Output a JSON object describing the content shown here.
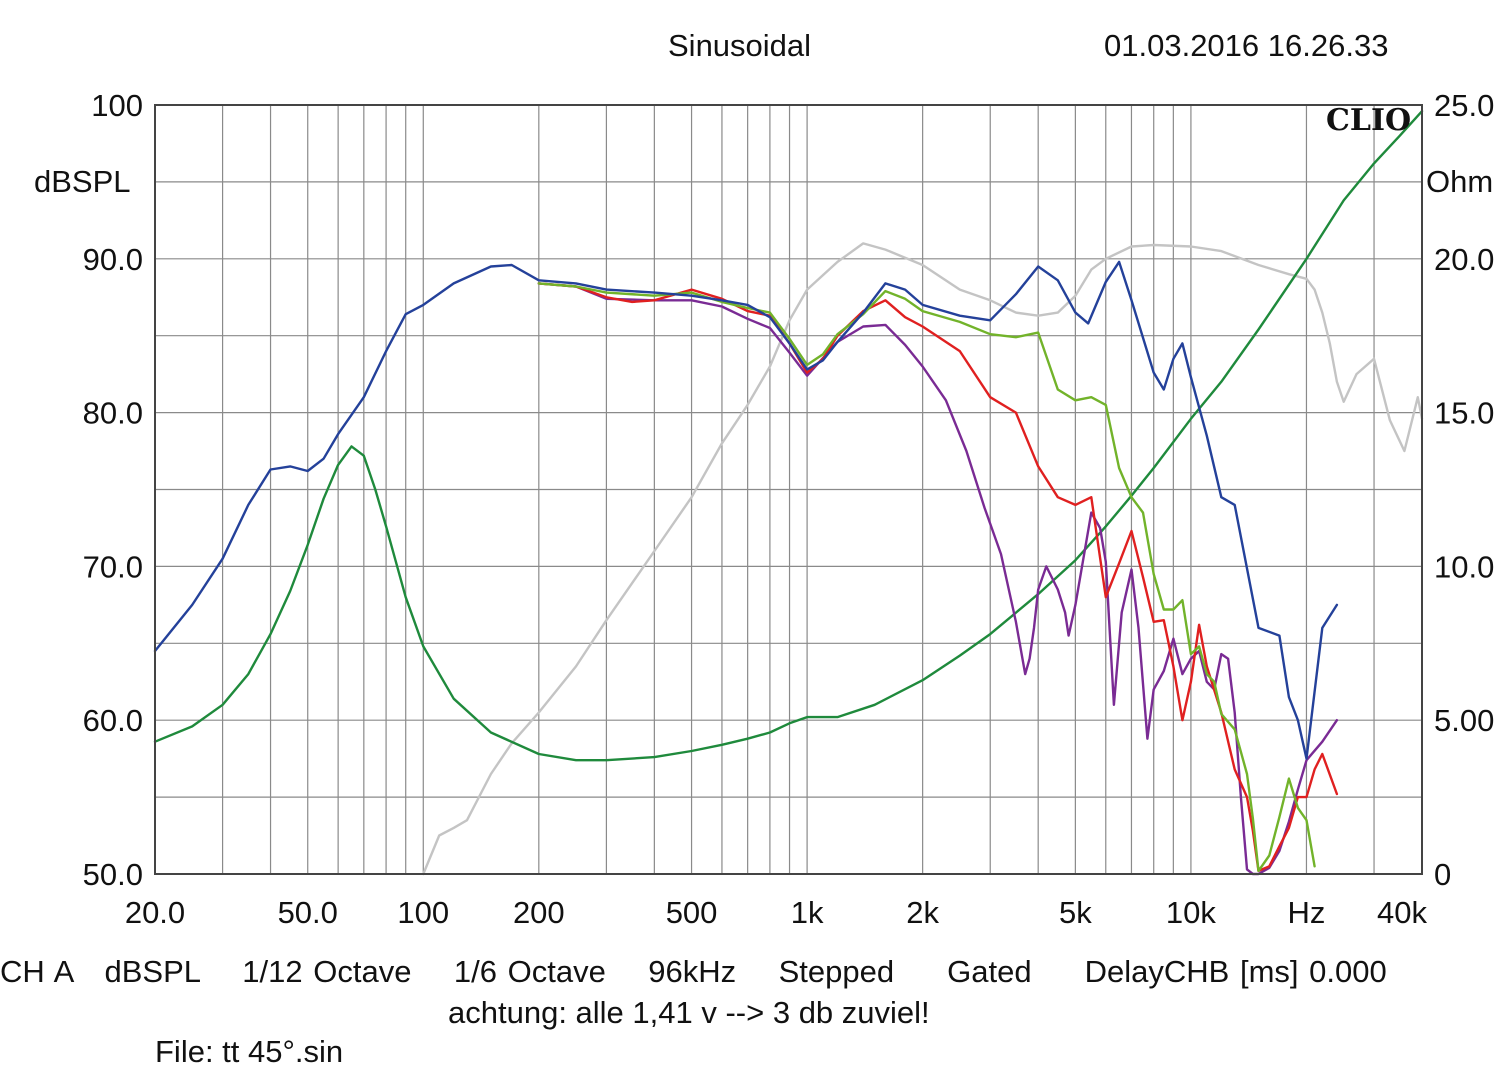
{
  "header": {
    "title": "Sinusoidal",
    "datetime": "01.03.2016 16.26.33",
    "brand": "CLIO"
  },
  "footer": {
    "settings": "CH A   dBSPL    1/12 Octave    1/6 Octave    96kHz    Stepped     Gated     DelayCHB [ms] 0.000",
    "note": "achtung: alle 1,41 v --> 3 db zuviel!",
    "file": "File: tt 45°.sin"
  },
  "chart_data": {
    "type": "line",
    "title": "Sinusoidal",
    "x_scale": "log",
    "xlim": [
      20,
      40000
    ],
    "ylim": [
      50,
      100
    ],
    "ylabel": "dBSPL",
    "y2lim": [
      0,
      25
    ],
    "y2label": "Ohm",
    "x_tick_labels": [
      "20.0",
      "50.0",
      "100",
      "200",
      "500",
      "1k",
      "2k",
      "5k",
      "10k",
      "Hz",
      "40k"
    ],
    "x_tick_values": [
      20,
      50,
      100,
      200,
      500,
      1000,
      2000,
      5000,
      10000,
      20000,
      40000
    ],
    "y_tick_labels": [
      "50.0",
      "60.0",
      "70.0",
      "80.0",
      "90.0",
      "100"
    ],
    "y_tick_values": [
      50,
      60,
      70,
      80,
      90,
      100
    ],
    "y2_tick_labels": [
      "0",
      "5.00",
      "10.0",
      "15.0",
      "20.0",
      "25.0"
    ],
    "y2_tick_values": [
      0,
      5,
      10,
      15,
      20,
      25
    ],
    "grid": true,
    "series": [
      {
        "color": "#24419a",
        "axis": "left",
        "x": [
          20,
          25,
          30,
          35,
          40,
          45,
          50,
          55,
          60,
          70,
          80,
          90,
          100,
          120,
          150,
          170,
          200,
          250,
          300,
          400,
          500,
          600,
          700,
          800,
          900,
          1000,
          1100,
          1200,
          1400,
          1600,
          1800,
          2000,
          2500,
          3000,
          3500,
          4000,
          4500,
          5000,
          5400,
          6000,
          6500,
          7000,
          8000,
          8500,
          9000,
          9500,
          10000,
          11000,
          12000,
          13000,
          15000,
          17000,
          18000,
          19000,
          20000,
          22000,
          24000
        ],
        "values": [
          64.5,
          67.5,
          70.5,
          74,
          76.3,
          76.5,
          76.2,
          77,
          78.6,
          81,
          84,
          86.4,
          87,
          88.4,
          89.5,
          89.6,
          88.6,
          88.4,
          88,
          87.8,
          87.6,
          87.3,
          87,
          86.2,
          84.5,
          82.8,
          83.4,
          84.6,
          86.5,
          88.4,
          88,
          87,
          86.3,
          86,
          87.7,
          89.5,
          88.6,
          86.5,
          85.8,
          88.5,
          89.8,
          87.3,
          82.6,
          81.5,
          83.5,
          84.5,
          82.3,
          78.5,
          74.5,
          74,
          66,
          65.5,
          61.5,
          60,
          57.5,
          66,
          67.5
        ]
      },
      {
        "color": "#e02020",
        "axis": "left",
        "x": [
          200,
          250,
          300,
          350,
          400,
          500,
          600,
          700,
          800,
          900,
          1000,
          1100,
          1200,
          1400,
          1600,
          1800,
          2000,
          2500,
          3000,
          3500,
          4000,
          4500,
          5000,
          5500,
          6000,
          6500,
          7000,
          7500,
          8000,
          8500,
          9000,
          9500,
          10000,
          10500,
          11000,
          12000,
          13000,
          14000,
          14500,
          15000,
          16000,
          17000,
          18000,
          19000,
          20000,
          21000,
          22000,
          24000
        ],
        "values": [
          88.4,
          88.2,
          87.5,
          87.2,
          87.3,
          88,
          87.4,
          86.6,
          86.3,
          84.5,
          82.6,
          83.5,
          85,
          86.6,
          87.3,
          86.2,
          85.6,
          84,
          81,
          80,
          76.5,
          74.5,
          74,
          74.5,
          68,
          70.2,
          72.3,
          69.3,
          66.4,
          66.5,
          63.5,
          60,
          62.5,
          66.2,
          63.5,
          60.5,
          56.8,
          55,
          52.8,
          50.2,
          50.5,
          51.8,
          53,
          55,
          55,
          56.8,
          57.8,
          55.2
        ]
      },
      {
        "color": "#72b32a",
        "axis": "left",
        "x": [
          200,
          250,
          300,
          400,
          500,
          600,
          700,
          800,
          900,
          1000,
          1100,
          1200,
          1400,
          1600,
          1800,
          2000,
          2500,
          3000,
          3500,
          4000,
          4500,
          5000,
          5500,
          6000,
          6500,
          7000,
          7500,
          8000,
          8500,
          9000,
          9500,
          10000,
          10500,
          11000,
          11500,
          12000,
          13000,
          14000,
          14500,
          15000,
          16000,
          17000,
          18000,
          19000,
          20000,
          21000
        ],
        "values": [
          88.4,
          88.2,
          87.8,
          87.6,
          87.8,
          87.2,
          86.8,
          86.5,
          84.8,
          83.1,
          83.8,
          85.1,
          86.4,
          87.9,
          87.4,
          86.6,
          85.9,
          85.1,
          84.9,
          85.2,
          81.5,
          80.8,
          81,
          80.5,
          76.4,
          74.5,
          73.5,
          69.5,
          67.2,
          67.2,
          67.8,
          64.3,
          64.8,
          63,
          62.5,
          60.4,
          59.4,
          56.5,
          53.6,
          50.2,
          51.2,
          53.7,
          56.2,
          54.3,
          53.5,
          50.5
        ]
      },
      {
        "color": "#7a2b94",
        "axis": "left",
        "x": [
          200,
          250,
          300,
          400,
          500,
          600,
          700,
          800,
          900,
          1000,
          1200,
          1400,
          1600,
          1800,
          2000,
          2300,
          2600,
          2900,
          3200,
          3500,
          3700,
          3800,
          3900,
          4000,
          4200,
          4500,
          4700,
          4800,
          5000,
          5500,
          5800,
          6000,
          6300,
          6600,
          7000,
          7300,
          7700,
          8000,
          8500,
          9000,
          9500,
          10000,
          10500,
          11000,
          11500,
          12000,
          12500,
          13000,
          13500,
          14000,
          14500,
          15000,
          16000,
          17000,
          18000,
          19000,
          20000,
          22000,
          24000
        ],
        "values": [
          88.4,
          88.2,
          87.4,
          87.3,
          87.3,
          86.9,
          86.1,
          85.5,
          83.9,
          82.4,
          84.6,
          85.6,
          85.7,
          84.4,
          83,
          80.8,
          77.5,
          73.8,
          70.8,
          66.4,
          63,
          64,
          66,
          68.5,
          70,
          68.5,
          67,
          65.5,
          67.5,
          73.5,
          72.5,
          70.3,
          61,
          67,
          69.8,
          66,
          58.8,
          62,
          63.2,
          65.3,
          63,
          64,
          64.5,
          62.5,
          62,
          64.3,
          64,
          60.5,
          55,
          50.3,
          50,
          50,
          50.4,
          51.5,
          53.4,
          55.5,
          57.4,
          58.6,
          60
        ]
      },
      {
        "color": "#c4c4c4",
        "axis": "left",
        "x": [
          100,
          110,
          120,
          130,
          150,
          170,
          200,
          250,
          300,
          400,
          500,
          600,
          700,
          800,
          900,
          1000,
          1200,
          1400,
          1600,
          2000,
          2500,
          3000,
          3500,
          4000,
          4500,
          5000,
          5500,
          6000,
          7000,
          8000,
          10000,
          12000,
          15000,
          18000,
          20000,
          21000,
          22000,
          23000,
          24000,
          25000,
          27000,
          30000,
          33000,
          36000,
          39000,
          40000
        ],
        "values": [
          50,
          52.5,
          53,
          53.5,
          56.5,
          58.5,
          60.5,
          63.5,
          66.5,
          71,
          74.5,
          78,
          80.5,
          83,
          86,
          88,
          89.8,
          91,
          90.6,
          89.6,
          88,
          87.3,
          86.5,
          86.3,
          86.5,
          87.6,
          89.3,
          90,
          90.8,
          90.9,
          90.8,
          90.5,
          89.6,
          89,
          88.7,
          88,
          86.5,
          84.5,
          82,
          80.7,
          82.5,
          83.5,
          79.5,
          77.5,
          81,
          79.6
        ]
      },
      {
        "color": "#1f8a3c",
        "axis": "right",
        "x": [
          20,
          25,
          30,
          35,
          40,
          45,
          50,
          55,
          60,
          65,
          70,
          75,
          80,
          90,
          100,
          120,
          150,
          200,
          250,
          300,
          400,
          500,
          600,
          700,
          800,
          900,
          1000,
          1200,
          1500,
          2000,
          2500,
          3000,
          4000,
          5000,
          6000,
          7000,
          8000,
          10000,
          12000,
          15000,
          20000,
          25000,
          30000,
          35000,
          40000
        ],
        "values": [
          4.3,
          4.8,
          5.5,
          6.5,
          7.8,
          9.2,
          10.7,
          12.2,
          13.3,
          13.9,
          13.6,
          12.5,
          11.3,
          9.0,
          7.4,
          5.7,
          4.6,
          3.9,
          3.7,
          3.7,
          3.8,
          4.0,
          4.2,
          4.4,
          4.6,
          4.9,
          5.1,
          5.1,
          5.5,
          6.3,
          7.1,
          7.8,
          9.1,
          10.2,
          11.3,
          12.3,
          13.2,
          14.8,
          16.0,
          17.7,
          20.0,
          21.9,
          23.1,
          24.0,
          24.8
        ]
      }
    ]
  }
}
